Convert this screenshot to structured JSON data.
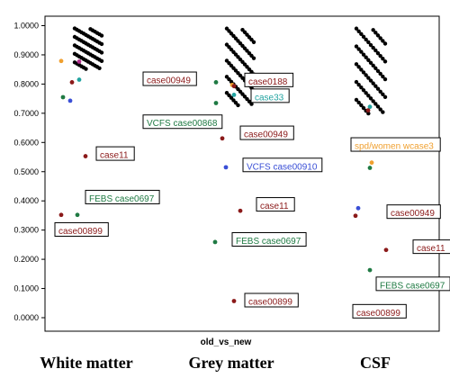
{
  "chart_data": {
    "type": "scatter",
    "xlabel": "old_vs_new",
    "categories": [
      "White matter",
      "Grey matter",
      "CSF"
    ],
    "ylim": [
      0,
      1
    ],
    "yticks": [
      "0.0000",
      "0.1000",
      "0.2000",
      "0.3000",
      "0.4000",
      "0.5000",
      "0.6000",
      "0.7000",
      "0.8000",
      "0.9000",
      "1.0000"
    ],
    "grid": false,
    "colors": {
      "default": "#000000",
      "darkred": "#8b1a1a",
      "green": "#1f7a43",
      "blue": "#3a4fd6",
      "teal": "#22a3a0",
      "orange": "#f0a030",
      "magenta": "#b0308c"
    },
    "cluster_points": [
      {
        "category": "White matter",
        "y": [
          0.9905,
          0.9883,
          0.9861,
          0.9838,
          0.9816,
          0.9794,
          0.9771,
          0.9749,
          0.9727,
          0.9704,
          0.9682,
          0.9659,
          0.9637,
          0.9615,
          0.9592,
          0.957,
          0.9548,
          0.9525,
          0.9503,
          0.9481,
          0.9458,
          0.9436,
          0.9414,
          0.9391,
          0.9369,
          0.9346,
          0.9324,
          0.9302,
          0.9279,
          0.9257,
          0.9235,
          0.9212,
          0.919,
          0.9168,
          0.9145,
          0.9123,
          0.9101,
          0.9078,
          0.9056,
          0.9034,
          0.9011,
          0.8989,
          0.8967,
          0.8944,
          0.8922,
          0.89,
          0.8877,
          0.8855,
          0.8833,
          0.881,
          0.8788,
          0.8766,
          0.8743,
          0.8721,
          0.8699,
          0.8676,
          0.8654,
          0.8632,
          0.8609,
          0.8587,
          0.8565,
          0.8542,
          0.852
        ]
      },
      {
        "category": "Grey matter",
        "y": [
          0.99,
          0.9857,
          0.9815,
          0.9773,
          0.973,
          0.9688,
          0.9646,
          0.9603,
          0.9561,
          0.9519,
          0.9476,
          0.9434,
          0.9392,
          0.9349,
          0.9307,
          0.9265,
          0.9222,
          0.918,
          0.9138,
          0.9095,
          0.9053,
          0.9011,
          0.8968,
          0.8926,
          0.8884,
          0.8841,
          0.8799,
          0.8757,
          0.8714,
          0.8672,
          0.863,
          0.8587,
          0.8545,
          0.8503,
          0.846,
          0.8418,
          0.8376,
          0.8333,
          0.8291,
          0.8249,
          0.8206,
          0.8164,
          0.8122,
          0.8079,
          0.8037,
          0.7995,
          0.7952,
          0.791,
          0.7868,
          0.7825,
          0.7783,
          0.7741,
          0.7698,
          0.7656,
          0.7614,
          0.7571,
          0.7529,
          0.7487,
          0.7444,
          0.7402,
          0.736,
          0.7317,
          0.7275
        ]
      },
      {
        "category": "CSF",
        "y": [
          0.99,
          0.9853,
          0.9806,
          0.9759,
          0.9712,
          0.9665,
          0.9619,
          0.9572,
          0.9525,
          0.9478,
          0.9431,
          0.9384,
          0.9337,
          0.929,
          0.9243,
          0.9196,
          0.915,
          0.9103,
          0.9056,
          0.9009,
          0.8962,
          0.8915,
          0.8868,
          0.8821,
          0.8774,
          0.8727,
          0.868,
          0.8634,
          0.8587,
          0.854,
          0.8493,
          0.8446,
          0.8399,
          0.8352,
          0.8305,
          0.8258,
          0.8211,
          0.8165,
          0.8118,
          0.8071,
          0.8024,
          0.7977,
          0.793,
          0.7883,
          0.7836,
          0.7789,
          0.7742,
          0.7696,
          0.7649,
          0.7602,
          0.7555,
          0.7508,
          0.7461,
          0.7414,
          0.7367,
          0.732,
          0.7273,
          0.7227,
          0.718,
          0.7133,
          0.7086,
          0.7039,
          0.6992
        ]
      }
    ],
    "points": [
      {
        "category": "White matter",
        "y": 0.879,
        "color": "orange"
      },
      {
        "category": "White matter",
        "y": 0.877,
        "color": "magenta"
      },
      {
        "category": "White matter",
        "y": 0.815,
        "color": "teal"
      },
      {
        "category": "White matter",
        "y": 0.806,
        "color": "darkred"
      },
      {
        "category": "White matter",
        "y": 0.755,
        "color": "green"
      },
      {
        "category": "White matter",
        "y": 0.743,
        "color": "blue"
      },
      {
        "category": "White matter",
        "y": 0.553,
        "color": "darkred"
      },
      {
        "category": "White matter",
        "y": 0.352,
        "color": "darkred"
      },
      {
        "category": "White matter",
        "y": 0.352,
        "color": "green"
      },
      {
        "category": "Grey matter",
        "y": 0.806,
        "color": "green"
      },
      {
        "category": "Grey matter",
        "y": 0.797,
        "color": "orange"
      },
      {
        "category": "Grey matter",
        "y": 0.793,
        "color": "darkred"
      },
      {
        "category": "Grey matter",
        "y": 0.763,
        "color": "teal"
      },
      {
        "category": "Grey matter",
        "y": 0.735,
        "color": "green"
      },
      {
        "category": "Grey matter",
        "y": 0.614,
        "color": "darkred"
      },
      {
        "category": "Grey matter",
        "y": 0.515,
        "color": "blue"
      },
      {
        "category": "Grey matter",
        "y": 0.366,
        "color": "darkred"
      },
      {
        "category": "Grey matter",
        "y": 0.259,
        "color": "green"
      },
      {
        "category": "Grey matter",
        "y": 0.057,
        "color": "darkred"
      },
      {
        "category": "CSF",
        "y": 0.722,
        "color": "teal"
      },
      {
        "category": "CSF",
        "y": 0.71,
        "color": "darkred"
      },
      {
        "category": "CSF",
        "y": 0.531,
        "color": "orange"
      },
      {
        "category": "CSF",
        "y": 0.513,
        "color": "green"
      },
      {
        "category": "CSF",
        "y": 0.375,
        "color": "blue"
      },
      {
        "category": "CSF",
        "y": 0.349,
        "color": "darkred"
      },
      {
        "category": "CSF",
        "y": 0.232,
        "color": "darkred"
      },
      {
        "category": "CSF",
        "y": 0.163,
        "color": "green"
      },
      {
        "category": "CSF",
        "y": 0.011,
        "color": "darkred"
      }
    ],
    "annotations": [
      {
        "text": "case00949",
        "category": "White matter",
        "y": 0.815,
        "color": "darkred"
      },
      {
        "text": "case11",
        "category": "White matter",
        "y": 0.559,
        "color": "darkred"
      },
      {
        "text": "FEBS case0697",
        "category": "White matter",
        "y": 0.41,
        "color": "green"
      },
      {
        "text": "case00899",
        "category": "White matter",
        "y": 0.299,
        "color": "darkred"
      },
      {
        "text": "case0188",
        "category": "Grey matter",
        "y": 0.811,
        "color": "darkred"
      },
      {
        "text": "case33",
        "category": "Grey matter",
        "y": 0.757,
        "color": "teal"
      },
      {
        "text": "VCFS case00868",
        "category": "Grey matter",
        "y": 0.668,
        "color": "green"
      },
      {
        "text": "case00949",
        "category": "Grey matter",
        "y": 0.63,
        "color": "darkred"
      },
      {
        "text": "VCFS case00910",
        "category": "Grey matter",
        "y": 0.52,
        "color": "blue"
      },
      {
        "text": "case11",
        "category": "Grey matter",
        "y": 0.385,
        "color": "darkred"
      },
      {
        "text": "FEBS case0697",
        "category": "Grey matter",
        "y": 0.265,
        "color": "green"
      },
      {
        "text": "case00899",
        "category": "Grey matter",
        "y": 0.057,
        "color": "darkred"
      },
      {
        "text": "spd/women wcase3",
        "category": "CSF",
        "y": 0.59,
        "color": "orange"
      },
      {
        "text": "case00949",
        "category": "CSF",
        "y": 0.36,
        "color": "darkred"
      },
      {
        "text": "case11",
        "category": "CSF",
        "y": 0.24,
        "color": "darkred"
      },
      {
        "text": "FEBS case0697",
        "category": "CSF",
        "y": 0.113,
        "color": "green"
      },
      {
        "text": "case00899",
        "category": "CSF",
        "y": 0.019,
        "color": "darkred"
      }
    ]
  }
}
